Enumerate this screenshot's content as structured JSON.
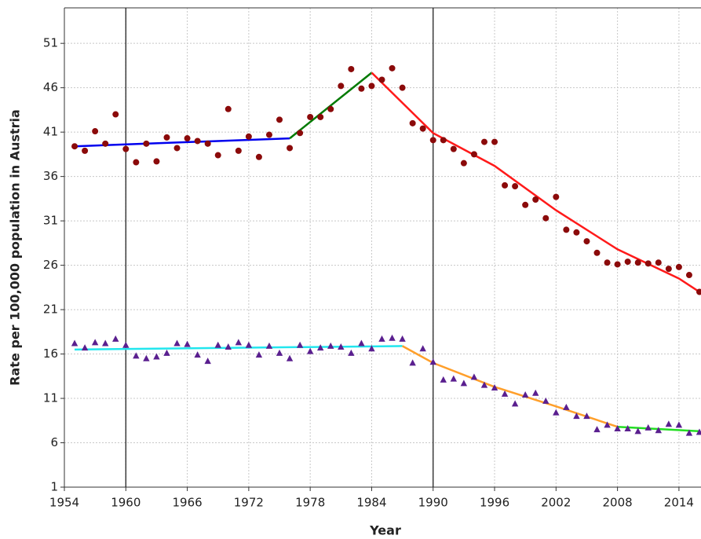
{
  "chart_data": {
    "type": "scatter",
    "xlabel": "Year",
    "ylabel": "Rate per 100,000 population in Austria",
    "xlim": [
      1954,
      2016
    ],
    "ylim": [
      1,
      55
    ],
    "xticks": [
      1954,
      1960,
      1966,
      1972,
      1978,
      1984,
      1990,
      1996,
      2002,
      2008,
      2014
    ],
    "yticks": [
      1,
      6,
      11,
      16,
      21,
      26,
      31,
      36,
      41,
      46,
      51
    ],
    "grid": true,
    "vlines": [
      1960,
      1990
    ],
    "series": [
      {
        "mode": "markers",
        "marker": "circle",
        "color": "#8b0a0a",
        "x": [
          1955,
          1956,
          1957,
          1958,
          1959,
          1960,
          1961,
          1962,
          1963,
          1964,
          1965,
          1966,
          1967,
          1968,
          1969,
          1970,
          1971,
          1972,
          1973,
          1974,
          1975,
          1976,
          1977,
          1978,
          1979,
          1980,
          1981,
          1982,
          1983,
          1984,
          1985,
          1986,
          1987,
          1988,
          1989,
          1990,
          1991,
          1992,
          1993,
          1994,
          1995,
          1996,
          1997,
          1998,
          1999,
          2000,
          2001,
          2002,
          2003,
          2004,
          2005,
          2006,
          2007,
          2008,
          2009,
          2010,
          2011,
          2012,
          2013,
          2014,
          2015,
          2016
        ],
        "values": [
          39.4,
          38.9,
          41.1,
          39.7,
          43.0,
          39.1,
          37.6,
          39.7,
          37.7,
          40.4,
          39.2,
          40.3,
          40.0,
          39.7,
          38.4,
          43.6,
          38.9,
          40.5,
          38.2,
          40.7,
          42.4,
          39.2,
          40.9,
          42.7,
          42.7,
          43.6,
          46.2,
          48.1,
          45.9,
          46.2,
          46.9,
          48.2,
          46.0,
          42.0,
          41.4,
          40.1,
          40.1,
          39.1,
          37.5,
          38.5,
          39.9,
          39.9,
          35.0,
          34.9,
          32.8,
          33.4,
          31.3,
          33.7,
          30.0,
          29.7,
          28.7,
          27.4,
          26.3,
          26.1,
          26.4,
          26.3,
          26.2,
          26.3,
          25.6,
          25.8,
          24.9,
          23.0
        ]
      },
      {
        "mode": "markers",
        "marker": "triangle",
        "color": "#5a1f8f",
        "x": [
          1955,
          1956,
          1957,
          1958,
          1959,
          1960,
          1961,
          1962,
          1963,
          1964,
          1965,
          1966,
          1967,
          1968,
          1969,
          1970,
          1971,
          1972,
          1973,
          1974,
          1975,
          1976,
          1977,
          1978,
          1979,
          1980,
          1981,
          1982,
          1983,
          1984,
          1985,
          1986,
          1987,
          1988,
          1989,
          1990,
          1991,
          1992,
          1993,
          1994,
          1995,
          1996,
          1997,
          1998,
          1999,
          2000,
          2001,
          2002,
          2003,
          2004,
          2005,
          2006,
          2007,
          2008,
          2009,
          2010,
          2011,
          2012,
          2013,
          2014,
          2015,
          2016
        ],
        "values": [
          17.2,
          16.7,
          17.3,
          17.2,
          17.7,
          17.0,
          15.8,
          15.5,
          15.7,
          16.1,
          17.2,
          17.1,
          15.9,
          15.2,
          17.0,
          16.8,
          17.3,
          17.0,
          15.9,
          16.9,
          16.1,
          15.5,
          17.0,
          16.3,
          16.7,
          16.9,
          16.8,
          16.1,
          17.2,
          16.6,
          17.7,
          17.8,
          17.7,
          15.0,
          16.6,
          15.1,
          13.1,
          13.2,
          12.7,
          13.4,
          12.5,
          12.2,
          11.5,
          10.4,
          11.4,
          11.6,
          10.7,
          9.4,
          10.0,
          9.0,
          9.0,
          7.5,
          8.0,
          7.6,
          7.6,
          7.3,
          7.7,
          7.4,
          8.1,
          8.0,
          7.1,
          7.2
        ]
      },
      {
        "mode": "line",
        "color": "#0000ee",
        "x": [
          1955,
          1976
        ],
        "values": [
          39.4,
          40.3
        ]
      },
      {
        "mode": "line",
        "color": "#007a00",
        "x": [
          1976,
          1984
        ],
        "values": [
          40.3,
          47.7
        ]
      },
      {
        "mode": "line",
        "color": "#ff1a1a",
        "x": [
          1984,
          1990,
          1996,
          2002,
          2008,
          2014,
          2016
        ],
        "values": [
          47.7,
          40.9,
          37.2,
          32.2,
          27.8,
          24.5,
          23.0
        ]
      },
      {
        "mode": "line",
        "color": "#22e6ee",
        "x": [
          1955,
          1987
        ],
        "values": [
          16.5,
          16.9
        ]
      },
      {
        "mode": "line",
        "color": "#ff9f2a",
        "x": [
          1987,
          1990,
          1996,
          2002,
          2008
        ],
        "values": [
          16.9,
          15.0,
          12.3,
          10.1,
          7.8
        ]
      },
      {
        "mode": "line",
        "color": "#22dd22",
        "x": [
          2008,
          2016
        ],
        "values": [
          7.8,
          7.3
        ]
      }
    ]
  }
}
